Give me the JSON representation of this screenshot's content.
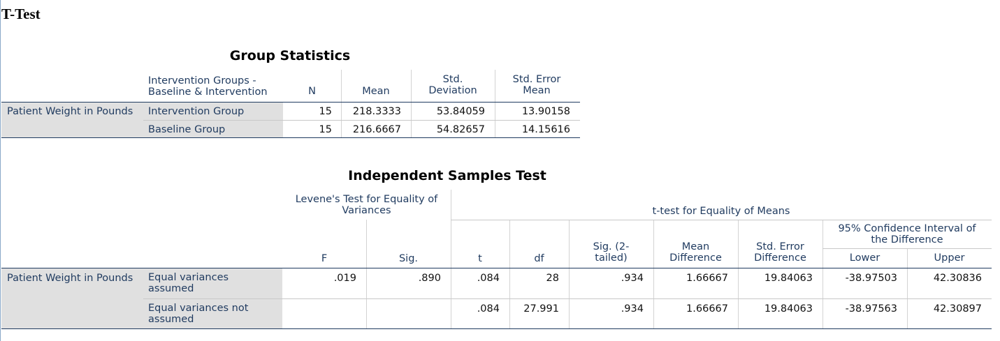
{
  "page": {
    "title": "T-Test"
  },
  "group_statistics": {
    "caption": "Group Statistics",
    "headers": {
      "group_col": "Intervention Groups -\nBaseline & Intervention",
      "n": "N",
      "mean": "Mean",
      "std_dev": "Std.\nDeviation",
      "std_err": "Std. Error\nMean"
    },
    "variable": "Patient Weight in Pounds",
    "rows": [
      {
        "group": "Intervention Group",
        "n": "15",
        "mean": "218.3333",
        "std_dev": "53.84059",
        "std_err": "13.90158"
      },
      {
        "group": "Baseline Group",
        "n": "15",
        "mean": "216.6667",
        "std_dev": "54.82657",
        "std_err": "14.15616"
      }
    ]
  },
  "independent_samples": {
    "caption": "Independent Samples Test",
    "headers": {
      "levene": "Levene's Test for Equality of\nVariances",
      "ttest": "t-test for Equality of Means",
      "ci": "95% Confidence Interval of\nthe Difference",
      "f": "F",
      "sig": "Sig.",
      "t": "t",
      "df": "df",
      "sig2": "Sig. (2-\ntailed)",
      "mean_diff": "Mean\nDifference",
      "se_diff": "Std. Error\nDifference",
      "lower": "Lower",
      "upper": "Upper"
    },
    "variable": "Patient Weight in Pounds",
    "rows": [
      {
        "label": "Equal variances\nassumed",
        "f": ".019",
        "sig": ".890",
        "t": ".084",
        "df": "28",
        "sig2": ".934",
        "mean_diff": "1.66667",
        "se_diff": "19.84063",
        "lower": "-38.97503",
        "upper": "42.30836"
      },
      {
        "label": "Equal variances not\nassumed",
        "f": "",
        "sig": "",
        "t": ".084",
        "df": "27.991",
        "sig2": ".934",
        "mean_diff": "1.66667",
        "se_diff": "19.84063",
        "lower": "-38.97563",
        "upper": "42.30897"
      }
    ]
  }
}
